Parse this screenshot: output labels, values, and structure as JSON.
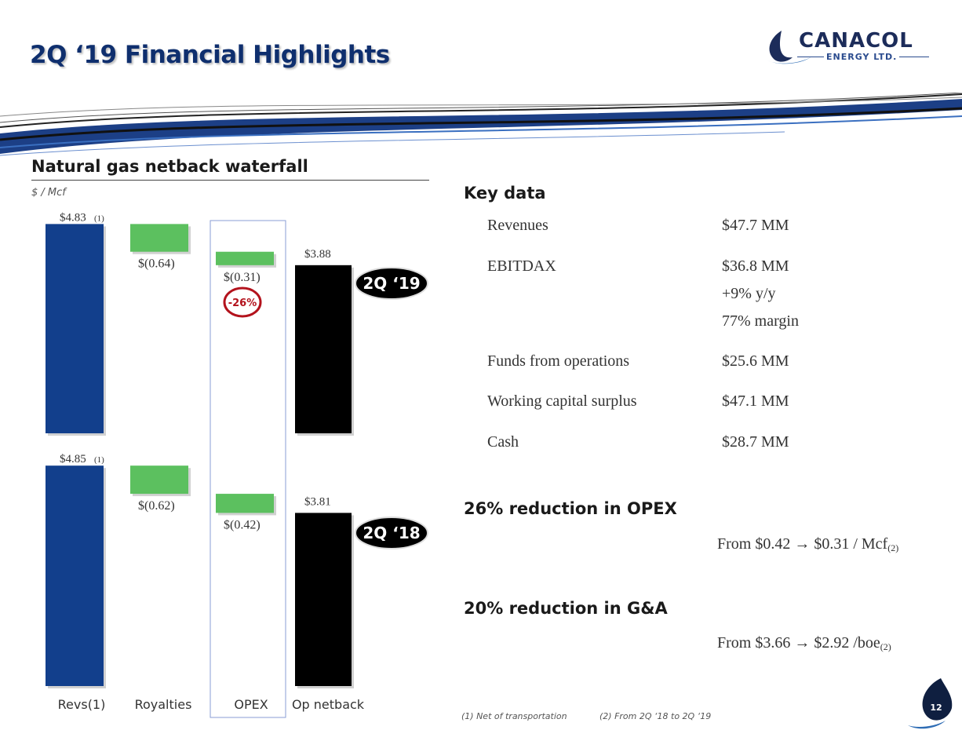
{
  "header": {
    "title": "2Q ‘19 Financial Highlights",
    "logo_word": "CANACOL",
    "logo_sub": "ENERGY LTD."
  },
  "section": {
    "title": "Natural gas netback waterfall",
    "unit": "$ / Mcf"
  },
  "colors": {
    "revs": "#123f8c",
    "royalty": "#5cc05f",
    "netback": "#000000",
    "accent_red": "#b3121c",
    "navy": "#0f2f6e"
  },
  "chart_data": {
    "type": "bar",
    "categories": [
      "Revs(1)",
      "Royalties",
      "OPEX",
      "Op netback"
    ],
    "series": [
      {
        "name": "2Q ‘19",
        "values": [
          4.83,
          -0.64,
          -0.31,
          3.88
        ],
        "labels": [
          "$4.83",
          "$(0.64)",
          "$(0.31)",
          "$3.88"
        ],
        "rev_note": "(1)"
      },
      {
        "name": "2Q ‘18",
        "values": [
          4.85,
          -0.62,
          -0.42,
          3.81
        ],
        "labels": [
          "$4.85",
          "$(0.62)",
          "$(0.42)",
          "$3.81"
        ],
        "rev_note": "(1)"
      }
    ],
    "annotation": "-26%",
    "ylabel": "$ / Mcf"
  },
  "key_data": {
    "title": "Key data",
    "rows": [
      {
        "label": "Revenues",
        "value": "$47.7 MM"
      },
      {
        "label": "EBITDAX",
        "value": "$36.8 MM"
      },
      {
        "label": "",
        "value": "+9% y/y"
      },
      {
        "label": "",
        "value": "77% margin"
      },
      {
        "label": "Funds from operations",
        "value": "$25.6 MM"
      },
      {
        "label": "Working capital surplus",
        "value": "$47.1 MM"
      },
      {
        "label": "Cash",
        "value": "$28.7 MM"
      }
    ]
  },
  "highlights": [
    {
      "title": "26% reduction in OPEX",
      "detail": "From $0.42 → $0.31 / Mcf",
      "note": "(2)"
    },
    {
      "title": "20% reduction in G&A",
      "detail": "From $3.66 → $2.92 /boe",
      "note": "(2)"
    }
  ],
  "footnotes": [
    "(1)   Net of transportation",
    "(2)    From 2Q ‘18 to 2Q ‘19"
  ],
  "page_number": "12"
}
